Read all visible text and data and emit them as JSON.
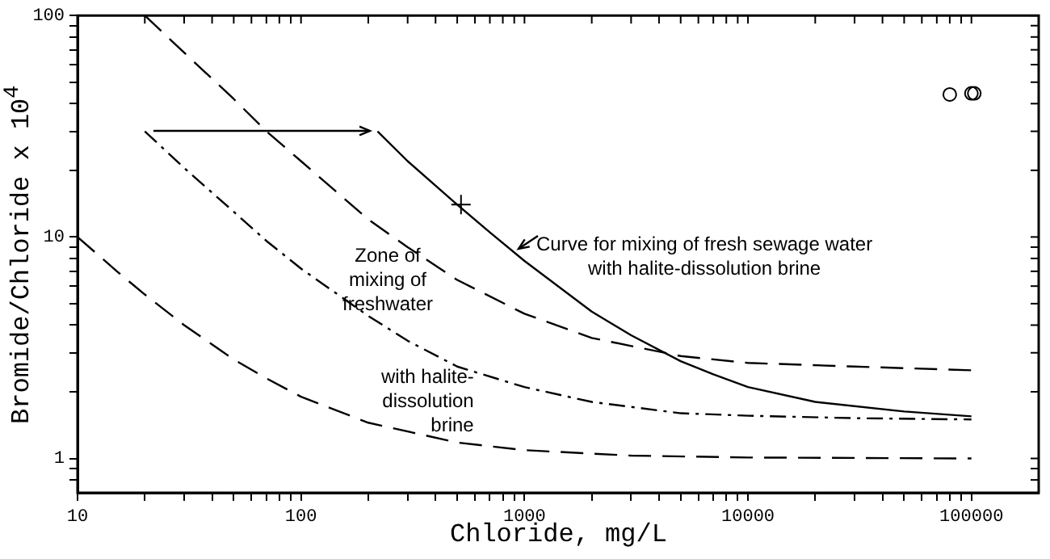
{
  "chart_data": {
    "type": "line",
    "xlabel": "Chloride, mg/L",
    "ylabel": "Bromide/Chloride x 10$^{4}$",
    "log": "xy",
    "grid": false,
    "legend": false,
    "xlim": [
      10,
      200000
    ],
    "ylim": [
      0.7,
      100
    ],
    "xticks": [
      10,
      {
        "value": 20,
        "label": null
      },
      {
        "value": 30,
        "label": null
      },
      {
        "value": 40,
        "label": null
      },
      {
        "value": 50,
        "label": null
      },
      {
        "value": 60,
        "label": null
      },
      {
        "value": 70,
        "label": null
      },
      {
        "value": 80,
        "label": null
      },
      {
        "value": 90,
        "label": null
      },
      100,
      {
        "value": 200,
        "label": null
      },
      {
        "value": 300,
        "label": null
      },
      {
        "value": 400,
        "label": null
      },
      {
        "value": 500,
        "label": null
      },
      {
        "value": 600,
        "label": null
      },
      {
        "value": 700,
        "label": null
      },
      {
        "value": 800,
        "label": null
      },
      {
        "value": 900,
        "label": null
      },
      1000,
      {
        "value": 2000,
        "label": null
      },
      {
        "value": 3000,
        "label": null
      },
      {
        "value": 4000,
        "label": null
      },
      {
        "value": 5000,
        "label": null
      },
      {
        "value": 6000,
        "label": null
      },
      {
        "value": 7000,
        "label": null
      },
      {
        "value": 8000,
        "label": null
      },
      {
        "value": 9000,
        "label": null
      },
      10000,
      {
        "value": 20000,
        "label": null
      },
      {
        "value": 30000,
        "label": null
      },
      {
        "value": 40000,
        "label": null
      },
      {
        "value": 50000,
        "label": null
      },
      {
        "value": 60000,
        "label": null
      },
      {
        "value": 70000,
        "label": null
      },
      {
        "value": 80000,
        "label": null
      },
      {
        "value": 90000,
        "label": null
      },
      100000
    ],
    "yticks": [
      {
        "value": 0.8,
        "label": null
      },
      {
        "value": 0.9,
        "label": null
      },
      1,
      {
        "value": 2,
        "label": null
      },
      {
        "value": 3,
        "label": null
      },
      {
        "value": 4,
        "label": null
      },
      {
        "value": 5,
        "label": null
      },
      {
        "value": 6,
        "label": null
      },
      {
        "value": 7,
        "label": null
      },
      {
        "value": 8,
        "label": null
      },
      {
        "value": 9,
        "label": null
      },
      10,
      {
        "value": 20,
        "label": null
      },
      {
        "value": 30,
        "label": null
      },
      {
        "value": 40,
        "label": null
      },
      {
        "value": 50,
        "label": null
      },
      {
        "value": 60,
        "label": null
      },
      {
        "value": 70,
        "label": null
      },
      {
        "value": 80,
        "label": null
      },
      {
        "value": 90,
        "label": null
      },
      100
    ],
    "series": [
      {
        "line_style": "dashed",
        "color": "#000000",
        "x": [
          20,
          30,
          50,
          70,
          100,
          200,
          300,
          500,
          1000,
          2000,
          5000,
          10000,
          30000,
          100000
        ],
        "values": [
          100,
          68,
          42,
          30,
          22,
          12,
          9,
          6.4,
          4.5,
          3.5,
          2.9,
          2.7,
          2.6,
          2.5
        ]
      },
      {
        "line_style": "dashdot",
        "color": "#000000",
        "x": [
          20,
          30,
          50,
          70,
          100,
          200,
          300,
          500,
          1000,
          2000,
          5000,
          10000,
          30000,
          100000
        ],
        "values": [
          30,
          20.5,
          13,
          9.6,
          7.2,
          4.4,
          3.4,
          2.6,
          2.1,
          1.8,
          1.6,
          1.56,
          1.52,
          1.5
        ]
      },
      {
        "line_style": "solid",
        "color": "#000000",
        "x": [
          220,
          300,
          500,
          700,
          1000,
          2000,
          3000,
          5000,
          7000,
          10000,
          20000,
          50000,
          100000
        ],
        "values": [
          30,
          22,
          14,
          10.5,
          7.8,
          4.6,
          3.6,
          2.75,
          2.4,
          2.1,
          1.8,
          1.63,
          1.55
        ]
      },
      {
        "line_style": "dashed",
        "color": "#000000",
        "x": [
          10,
          15,
          20,
          30,
          50,
          70,
          100,
          200,
          500,
          1000,
          3000,
          10000,
          100000
        ],
        "values": [
          10,
          7,
          5.5,
          4,
          2.8,
          2.3,
          1.9,
          1.45,
          1.18,
          1.09,
          1.03,
          1.01,
          1.0
        ]
      },
      {
        "type": "scatter",
        "marker": "circle",
        "color": "#000000",
        "x": [
          80000,
          100000,
          103000
        ],
        "values": [
          44,
          44.5,
          44.5
        ]
      },
      {
        "type": "scatter",
        "marker": "cross",
        "color": "#000000",
        "x": [
          520
        ],
        "values": [
          14
        ]
      }
    ],
    "annotations": [
      "Zone of\nmixing of\nfreshwater",
      "with halite-\ndissolution\nbrine",
      "Curve for mixing of fresh sewage water\nwith halite-dissolution brine"
    ]
  }
}
